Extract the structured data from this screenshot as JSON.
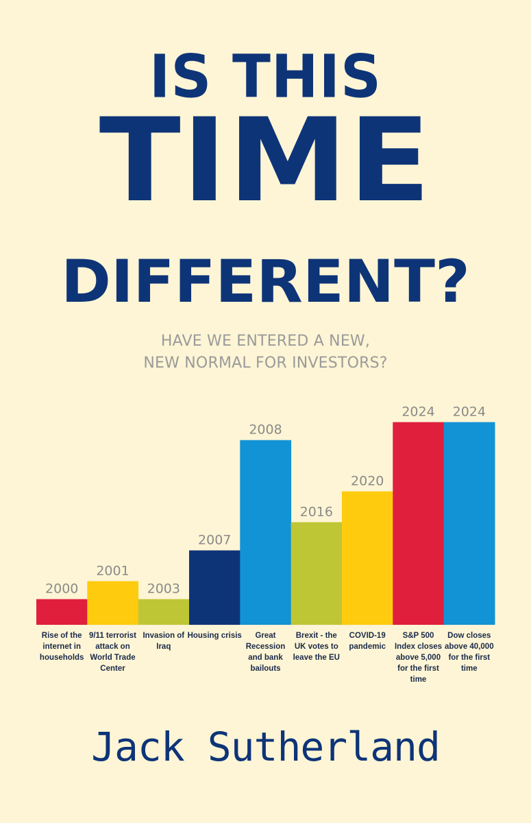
{
  "title": {
    "line1": "IS THIS",
    "line2": "TIME",
    "line3": "DIFFERENT?"
  },
  "subtitle": {
    "line1": "HAVE WE ENTERED A NEW,",
    "line2": "NEW NORMAL FOR INVESTORS?"
  },
  "author": "Jack Sutherland",
  "colors": {
    "background": "#fdf5d5",
    "title": "#0e3478",
    "red": "#e01f3c",
    "yellow": "#fecb0e",
    "olive": "#bec635",
    "navy": "#0e3478",
    "blue": "#1293d6"
  },
  "chart_data": {
    "type": "bar",
    "bars": [
      {
        "year": "2000",
        "label": [
          "Rise of the",
          "internet in",
          "households"
        ],
        "height": 1.0,
        "color": "red"
      },
      {
        "year": "2001",
        "label": [
          "9/11 terrorist",
          "attack on",
          "World Trade",
          "Center"
        ],
        "height": 1.7,
        "color": "yellow"
      },
      {
        "year": "2003",
        "label": [
          "Invasion of",
          "Iraq"
        ],
        "height": 1.0,
        "color": "olive"
      },
      {
        "year": "2007",
        "label": [
          "Housing crisis"
        ],
        "height": 2.9,
        "color": "navy"
      },
      {
        "year": "2008",
        "label": [
          "Great",
          "Recession",
          "and bank",
          "bailouts"
        ],
        "height": 7.2,
        "color": "blue"
      },
      {
        "year": "2016",
        "label": [
          "Brexit - the",
          "UK votes to",
          "leave the EU"
        ],
        "height": 4.0,
        "color": "olive"
      },
      {
        "year": "2020",
        "label": [
          "COVID-19",
          "pandemic"
        ],
        "height": 5.2,
        "color": "yellow"
      },
      {
        "year": "2024",
        "label": [
          "S&P 500",
          "Index closes",
          "above 5,000",
          "for the first",
          "time"
        ],
        "height": 7.9,
        "color": "red"
      },
      {
        "year": "2024",
        "label": [
          "Dow closes",
          "above 40,000",
          "for the first",
          "time"
        ],
        "height": 7.9,
        "color": "blue"
      }
    ]
  }
}
